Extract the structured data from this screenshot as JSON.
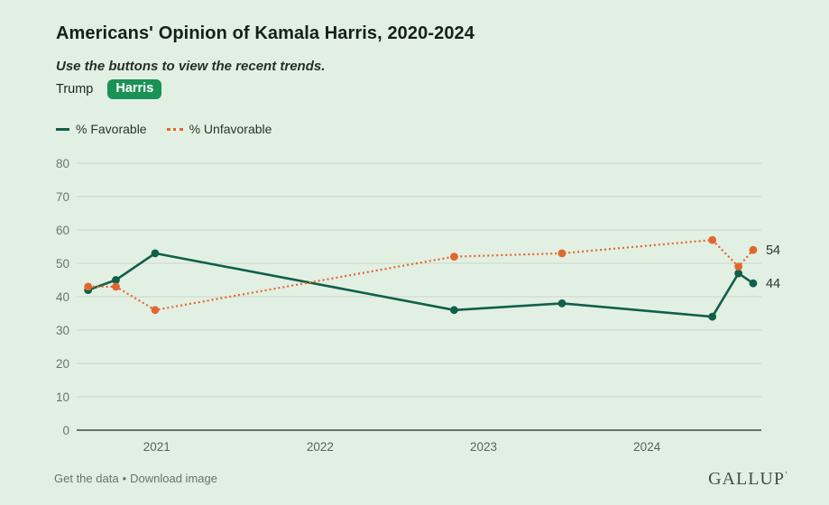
{
  "header": {
    "title": "Americans' Opinion of Kamala Harris, 2020-2024",
    "subtitle": "Use the buttons to view the recent trends."
  },
  "toggle_buttons": [
    {
      "label": "Trump",
      "selected": false
    },
    {
      "label": "Harris",
      "selected": true
    }
  ],
  "selected_button_color": "#1a9255",
  "legend": [
    {
      "label": "% Favorable"
    },
    {
      "label": "% Unfavorable"
    }
  ],
  "chart_data": {
    "type": "line",
    "x_years": [
      2020.58,
      2020.75,
      2020.99,
      2022.82,
      2023.48,
      2024.4,
      2024.56,
      2024.65
    ],
    "series": [
      {
        "name": "% Favorable",
        "color": "#115f4a",
        "line_style": "solid",
        "values": [
          42,
          45,
          53,
          36,
          38,
          34,
          47,
          44
        ],
        "end_label": "44"
      },
      {
        "name": "% Unfavorable",
        "color": "#e2672d",
        "line_style": "dotted",
        "values": [
          43,
          43,
          36,
          52,
          53,
          57,
          49,
          54
        ],
        "end_label": "54"
      }
    ],
    "xlim": [
      2020.51,
      2024.7
    ],
    "ylim": [
      0,
      80
    ],
    "yticks": [
      0,
      10,
      20,
      30,
      40,
      50,
      60,
      70,
      80
    ],
    "xticks": [
      2021,
      2022,
      2023,
      2024
    ],
    "grid": true,
    "legend_position": "top-left",
    "title": "Americans' Opinion of Kamala Harris, 2020-2024",
    "xlabel": "",
    "ylabel": ""
  },
  "footer": {
    "link1": "Get the data",
    "separator": "•",
    "link2": "Download image",
    "brand": "GALLUP",
    "brand_mark": "ʼ"
  }
}
